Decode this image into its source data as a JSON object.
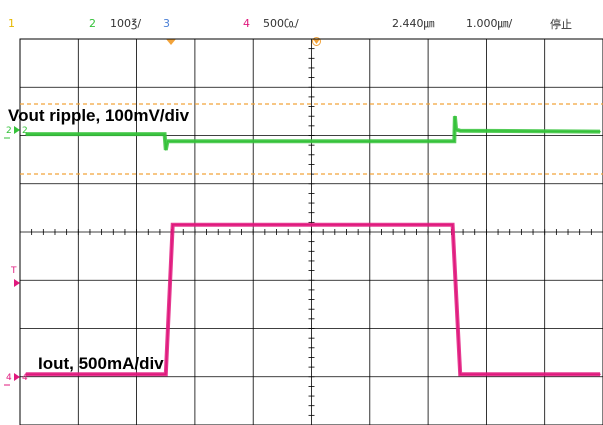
{
  "header": {
    "ch1_label": "1",
    "ch2_label": "2",
    "ch2_scale": "100℥/",
    "ch3_label": "3",
    "ch4_label": "4",
    "ch4_scale": "500㏇/",
    "timebase_pos": "2.440㎛",
    "timebase_scale": "1.000㎛/",
    "run_state": "停止"
  },
  "colors": {
    "ch1": "#e6b800",
    "ch2": "#35c23a",
    "ch3": "#4a7fd6",
    "ch4": "#e0187d",
    "grid": "#000000",
    "cursor": "#f2a33a"
  },
  "chart_data": {
    "type": "line",
    "title": "",
    "xlabel": "",
    "ylabel": "",
    "x_divisions": 10,
    "y_divisions": 8,
    "xlim": [
      0,
      10
    ],
    "ylim": [
      0,
      8
    ],
    "grid": true,
    "series": [
      {
        "name": "Vout ripple, 100mV/div",
        "channel": "2",
        "color": "#35c23a",
        "x": [
          0.1,
          2.48,
          2.5,
          2.53,
          2.6,
          7.45,
          7.46,
          7.48,
          7.55,
          9.95
        ],
        "y": [
          6.03,
          6.03,
          5.7,
          5.88,
          5.88,
          5.88,
          6.4,
          6.12,
          6.1,
          6.08
        ]
      },
      {
        "name": "Iout, 500mA/div",
        "channel": "4",
        "color": "#e0187d",
        "x": [
          0.1,
          2.5,
          2.62,
          7.42,
          7.55,
          9.95
        ],
        "y": [
          1.05,
          1.05,
          4.15,
          4.15,
          1.05,
          1.05
        ]
      }
    ],
    "annotations": [
      {
        "text": "Vout ripple, 100mV/div",
        "series": "2"
      },
      {
        "text": "Iout, 500mA/div",
        "series": "4"
      }
    ],
    "markers": {
      "ch2_level": "2",
      "ch4_level": "4",
      "trigger": "T"
    }
  }
}
